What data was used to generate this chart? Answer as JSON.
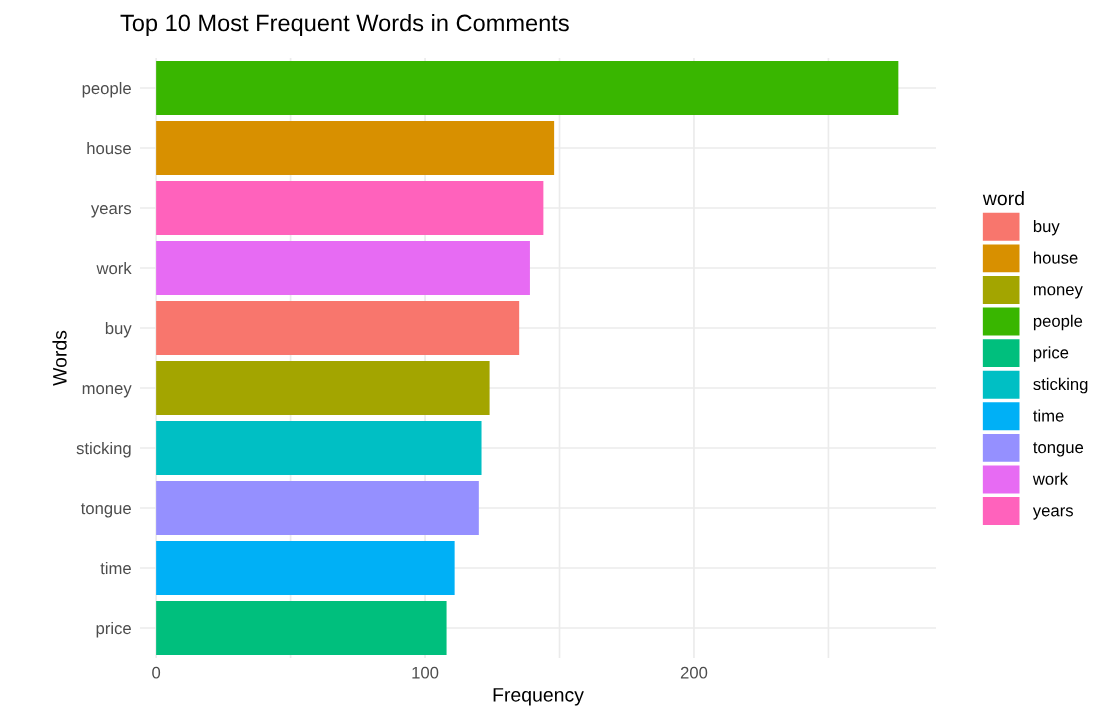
{
  "chart_data": {
    "type": "bar",
    "orientation": "horizontal",
    "title": "Top 10 Most Frequent Words in Comments",
    "xlabel": "Frequency",
    "ylabel": "Words",
    "legend_title": "word",
    "legend": "right",
    "grid": true,
    "categories": [
      "people",
      "house",
      "years",
      "work",
      "buy",
      "money",
      "sticking",
      "tongue",
      "time",
      "price"
    ],
    "series": [
      {
        "name": "buy",
        "color": "#f8766d",
        "values": [
          null,
          null,
          null,
          null,
          135,
          null,
          null,
          null,
          null,
          null
        ]
      },
      {
        "name": "house",
        "color": "#d89000",
        "values": [
          null,
          148,
          null,
          null,
          null,
          null,
          null,
          null,
          null,
          null
        ]
      },
      {
        "name": "money",
        "color": "#a3a500",
        "values": [
          null,
          null,
          null,
          null,
          null,
          124,
          null,
          null,
          null,
          null
        ]
      },
      {
        "name": "people",
        "color": "#39b600",
        "values": [
          276,
          null,
          null,
          null,
          null,
          null,
          null,
          null,
          null,
          null
        ]
      },
      {
        "name": "price",
        "color": "#00bf7d",
        "values": [
          null,
          null,
          null,
          null,
          null,
          null,
          null,
          null,
          null,
          108
        ]
      },
      {
        "name": "sticking",
        "color": "#00bfc4",
        "values": [
          null,
          null,
          null,
          null,
          null,
          null,
          121,
          null,
          null,
          null
        ]
      },
      {
        "name": "time",
        "color": "#00b0f6",
        "values": [
          null,
          null,
          null,
          null,
          null,
          null,
          null,
          null,
          111,
          null
        ]
      },
      {
        "name": "tongue",
        "color": "#9590ff",
        "values": [
          null,
          null,
          null,
          null,
          null,
          null,
          null,
          120,
          null,
          null
        ]
      },
      {
        "name": "work",
        "color": "#e76bf3",
        "values": [
          null,
          null,
          null,
          139,
          null,
          null,
          null,
          null,
          null,
          null
        ]
      },
      {
        "name": "years",
        "color": "#ff62bc",
        "values": [
          null,
          null,
          144,
          null,
          null,
          null,
          null,
          null,
          null,
          null
        ]
      }
    ],
    "xlim": [
      -6,
      290
    ],
    "xticks": [
      0,
      {
        "value": 50,
        "label": null
      },
      100,
      {
        "value": 150,
        "label": null
      },
      200,
      {
        "value": 250,
        "label": null
      }
    ]
  }
}
